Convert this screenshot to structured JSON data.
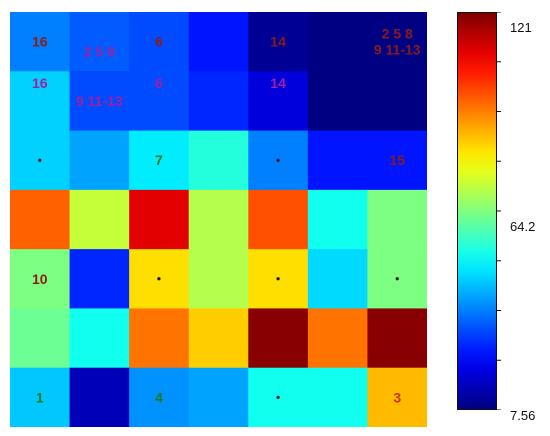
{
  "chart_data": {
    "type": "heatmap",
    "rows": 7,
    "cols": 7,
    "values": [
      [
        36,
        32,
        30,
        24,
        10,
        8,
        8
      ],
      [
        45,
        30,
        30,
        26,
        18,
        8,
        8
      ],
      [
        45,
        40,
        48,
        54,
        36,
        24,
        24
      ],
      [
        96,
        72,
        110,
        70,
        98,
        52,
        64
      ],
      [
        64,
        26,
        82,
        70,
        82,
        46,
        64
      ],
      [
        62,
        52,
        94,
        84,
        120,
        94,
        120
      ],
      [
        44,
        14,
        38,
        40,
        52,
        52,
        86
      ]
    ],
    "labels": [
      {
        "row": 0,
        "col": 0,
        "text": "16",
        "color": "#8b1a1a"
      },
      {
        "row": 0,
        "col": 2,
        "text": "6",
        "color": "#8b1a1a"
      },
      {
        "row": 0,
        "col": 4,
        "text": "14",
        "color": "#8b1a1a"
      },
      {
        "row": 0,
        "col": 6,
        "text": "2 5 8",
        "color": "#8b1a1a",
        "offset": -8
      },
      {
        "row": 0,
        "col": 6,
        "text": "9 11-13",
        "color": "#8b1a1a",
        "offset": 8
      },
      {
        "row": 0,
        "col": 1,
        "text": "2 5 8",
        "color": "#a020a0",
        "offset": 10
      },
      {
        "row": 1,
        "col": 0,
        "text": "16",
        "color": "#a020a0",
        "offset": -18
      },
      {
        "row": 1,
        "col": 1,
        "text": "9 11-13",
        "color": "#a020a0",
        "offset": 0
      },
      {
        "row": 1,
        "col": 2,
        "text": "6",
        "color": "#a020a0",
        "offset": -18
      },
      {
        "row": 1,
        "col": 4,
        "text": "14",
        "color": "#a020a0",
        "offset": -18
      },
      {
        "row": 2,
        "col": 2,
        "text": "7",
        "color": "#1a7a1a"
      },
      {
        "row": 2,
        "col": 6,
        "text": "15",
        "color": "#8b1a1a"
      },
      {
        "row": 4,
        "col": 0,
        "text": "10",
        "color": "#8b1a1a"
      },
      {
        "row": 6,
        "col": 0,
        "text": "1",
        "color": "#1a7a1a"
      },
      {
        "row": 6,
        "col": 2,
        "text": "4",
        "color": "#1a7a1a"
      },
      {
        "row": 6,
        "col": 6,
        "text": "3",
        "color": "#d03010"
      }
    ],
    "dots": [
      {
        "row": 2,
        "col": 0
      },
      {
        "row": 2,
        "col": 4
      },
      {
        "row": 4,
        "col": 2
      },
      {
        "row": 4,
        "col": 4
      },
      {
        "row": 4,
        "col": 6
      },
      {
        "row": 6,
        "col": 4
      }
    ],
    "colorbar": {
      "min": 7.56,
      "max": 121,
      "tick_labels": [
        "121",
        "64.2",
        "7.56"
      ],
      "tick_values": [
        121,
        64.2,
        7.56
      ],
      "minor_ticks": 8
    }
  }
}
